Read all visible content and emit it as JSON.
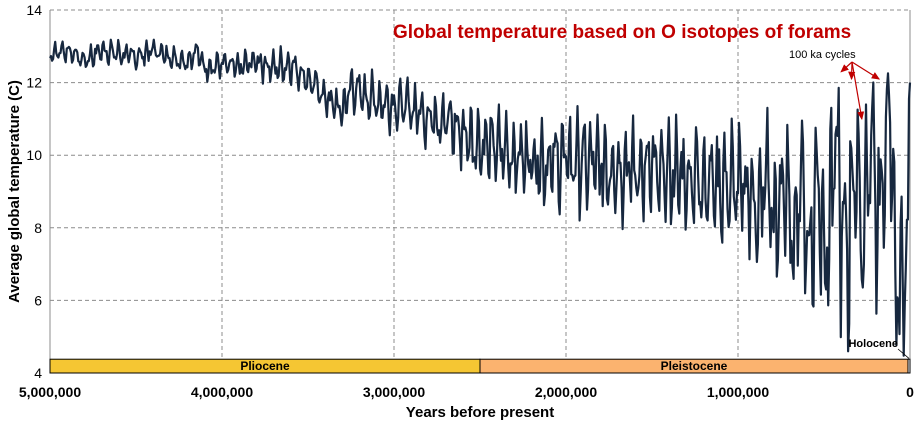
{
  "chart_data": {
    "type": "line",
    "title": "Global temperature based on O isotopes of forams",
    "xlabel": "Years before present",
    "ylabel": "Average global temperature (C)",
    "xlim": [
      5000000,
      0
    ],
    "ylim": [
      4,
      14
    ],
    "x_ticks": [
      5000000,
      4000000,
      3000000,
      2000000,
      1000000,
      0
    ],
    "x_tick_labels": [
      "5,000,000",
      "4,000,000",
      "3,000,000",
      "2,000,000",
      "1,000,000",
      "0"
    ],
    "y_ticks": [
      4,
      6,
      8,
      10,
      12,
      14
    ],
    "y_tick_labels": [
      "4",
      "6",
      "8",
      "10",
      "12",
      "14"
    ],
    "grid": true,
    "series": [
      {
        "name": "Temperature",
        "color": "#17283f",
        "x": [
          5000000,
          4900000,
          4800000,
          4700000,
          4600000,
          4500000,
          4400000,
          4300000,
          4200000,
          4150000,
          4100000,
          4000000,
          3900000,
          3800000,
          3700000,
          3600000,
          3500000,
          3400000,
          3300000,
          3250000,
          3200000,
          3100000,
          3000000,
          2900000,
          2800000,
          2700000,
          2600000,
          2500000,
          2400000,
          2300000,
          2200000,
          2100000,
          2000000,
          1900000,
          1800000,
          1700000,
          1600000,
          1500000,
          1400000,
          1300000,
          1200000,
          1100000,
          1000000,
          900000,
          800000,
          700000,
          600000,
          500000,
          450000,
          400000,
          350000,
          300000,
          250000,
          200000,
          150000,
          120000,
          100000,
          80000,
          60000,
          40000,
          20000,
          10000,
          5000,
          0
        ],
        "values": [
          12.8,
          12.9,
          12.6,
          12.9,
          12.8,
          12.7,
          12.9,
          12.7,
          12.6,
          12.9,
          12.4,
          12.5,
          12.4,
          12.6,
          12.4,
          12.5,
          12.1,
          11.6,
          11.2,
          11.9,
          11.7,
          11.5,
          11.4,
          11.3,
          11.1,
          11.0,
          10.6,
          10.3,
          10.2,
          10.0,
          9.9,
          9.8,
          9.9,
          9.8,
          9.7,
          9.7,
          9.6,
          9.5,
          9.5,
          9.4,
          9.4,
          9.2,
          9.1,
          8.9,
          8.7,
          8.5,
          8.4,
          8.3,
          8.8,
          9.0,
          7.5,
          9.8,
          8.3,
          10.2,
          8.6,
          10.5,
          9.8,
          7.5,
          6.5,
          5.8,
          6.2,
          7.5,
          9.9,
          12.0
        ],
        "variability": 0.35
      }
    ],
    "amplitude_profile": {
      "x": [
        5000000,
        4000000,
        3500000,
        3000000,
        2500000,
        2000000,
        1500000,
        1000000,
        700000,
        500000,
        300000,
        100000,
        0
      ],
      "amp": [
        0.35,
        0.4,
        0.55,
        0.75,
        1.15,
        1.45,
        1.65,
        1.8,
        2.3,
        3.1,
        3.3,
        3.2,
        3.0
      ]
    },
    "epochs": [
      {
        "name": "Pliocene",
        "start": 5000000,
        "end": 2500000,
        "color": "#f5c633"
      },
      {
        "name": "Pleistocene",
        "start": 2500000,
        "end": 11700,
        "color": "#fbb36f"
      },
      {
        "name": "",
        "start": 11700,
        "end": 0,
        "color": "#ffffff"
      }
    ],
    "annotations": [
      {
        "text": "100 ka cycles",
        "arrow_targets": [
          [
            400000,
            12.3
          ],
          [
            340000,
            12.1
          ],
          [
            280000,
            11.0
          ],
          [
            180000,
            12.1
          ]
        ]
      },
      {
        "text": "Holocene",
        "arrow_target": [
          0,
          4.3
        ]
      }
    ],
    "title_color": "#c00000",
    "arrow_color": "#c00000"
  }
}
